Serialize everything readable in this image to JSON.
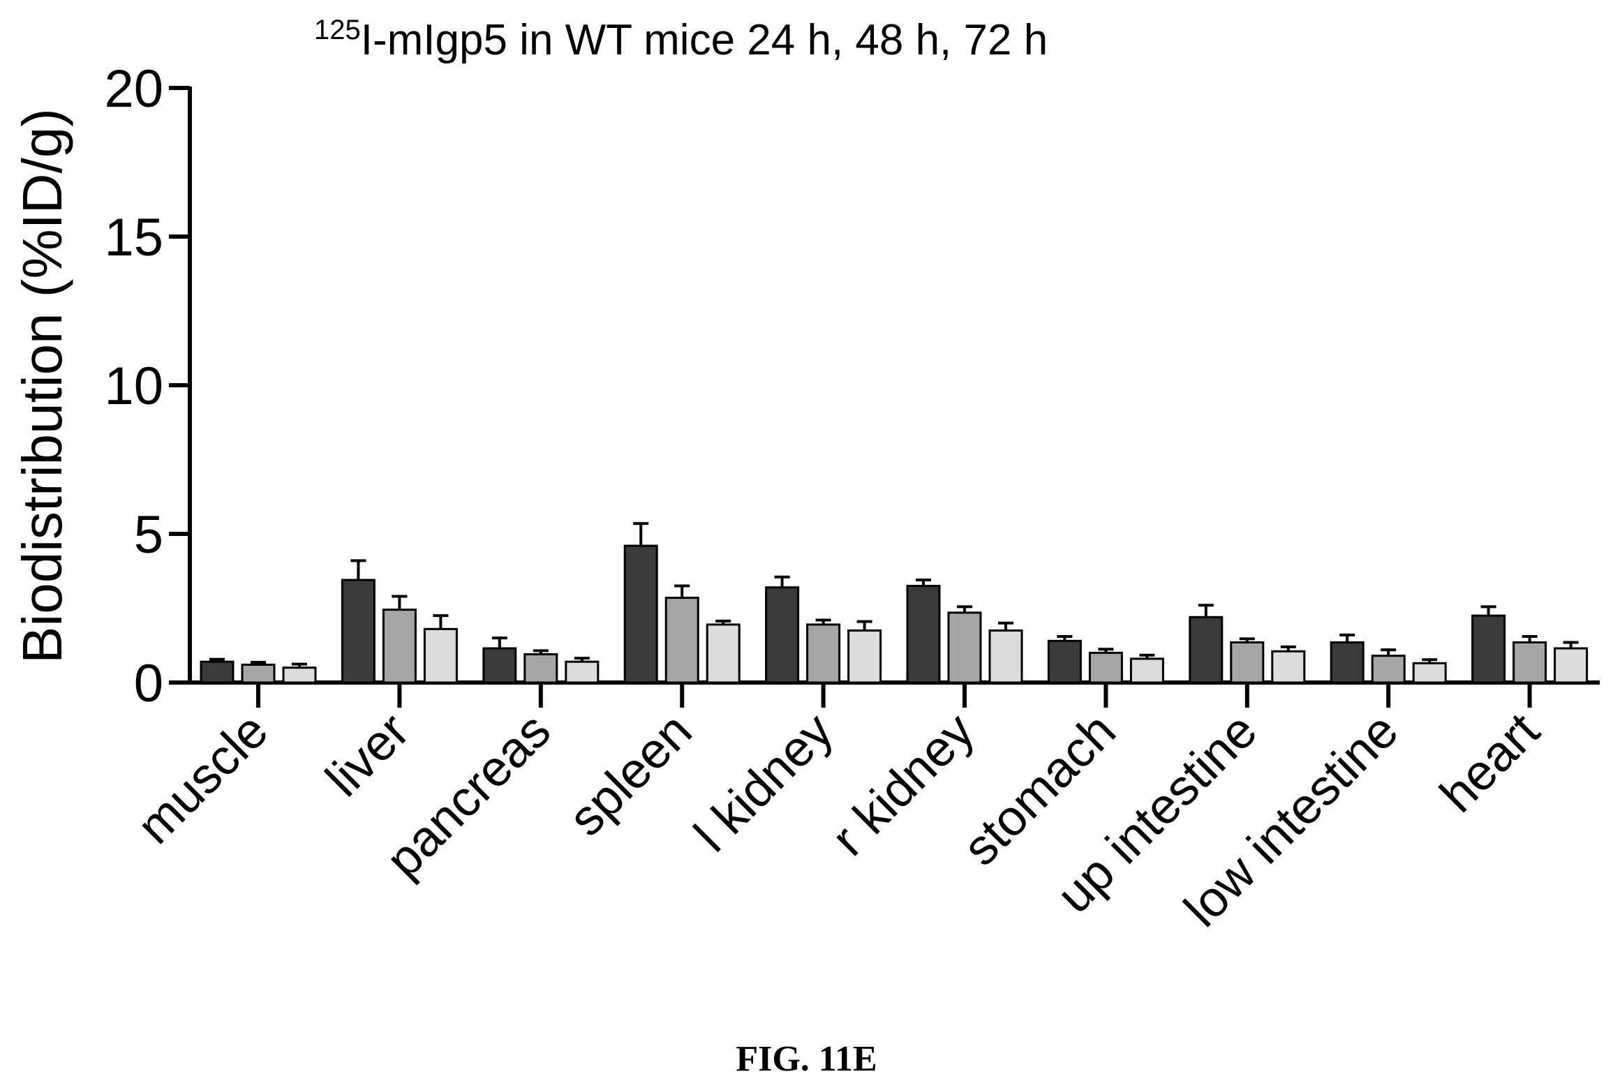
{
  "figure_caption": "FIG. 11E",
  "chart_data": {
    "type": "bar",
    "title_prefix_superscript": "125",
    "title": "I-mIgp5 in WT mice 24 h, 48 h, 72 h",
    "xlabel": "",
    "ylabel": "Biodistribution (%ID/g)",
    "ylim": [
      0,
      20
    ],
    "yticks": [
      "0",
      "5",
      "10",
      "15",
      "20"
    ],
    "categories": [
      "muscle",
      "liver",
      "pancreas",
      "spleen",
      "l kidney",
      "r kidney",
      "stomach",
      "up intestine",
      "low intestine",
      "heart"
    ],
    "series": [
      {
        "color": "#3a3a3a",
        "values": [
          0.7,
          3.45,
          1.15,
          4.6,
          3.2,
          3.25,
          1.4,
          2.2,
          1.35,
          2.25
        ],
        "errors": [
          0.08,
          0.65,
          0.35,
          0.75,
          0.35,
          0.2,
          0.15,
          0.4,
          0.25,
          0.3
        ]
      },
      {
        "color": "#a6a6a6",
        "values": [
          0.6,
          2.45,
          0.95,
          2.85,
          1.95,
          2.35,
          1.0,
          1.35,
          0.9,
          1.35
        ],
        "errors": [
          0.08,
          0.45,
          0.12,
          0.4,
          0.15,
          0.2,
          0.12,
          0.12,
          0.2,
          0.2
        ]
      },
      {
        "color": "#dcdcdc",
        "values": [
          0.5,
          1.8,
          0.7,
          1.95,
          1.75,
          1.75,
          0.8,
          1.05,
          0.65,
          1.15
        ],
        "errors": [
          0.12,
          0.45,
          0.12,
          0.12,
          0.3,
          0.25,
          0.12,
          0.15,
          0.12,
          0.2
        ]
      }
    ],
    "grid": false,
    "legend": "none"
  }
}
